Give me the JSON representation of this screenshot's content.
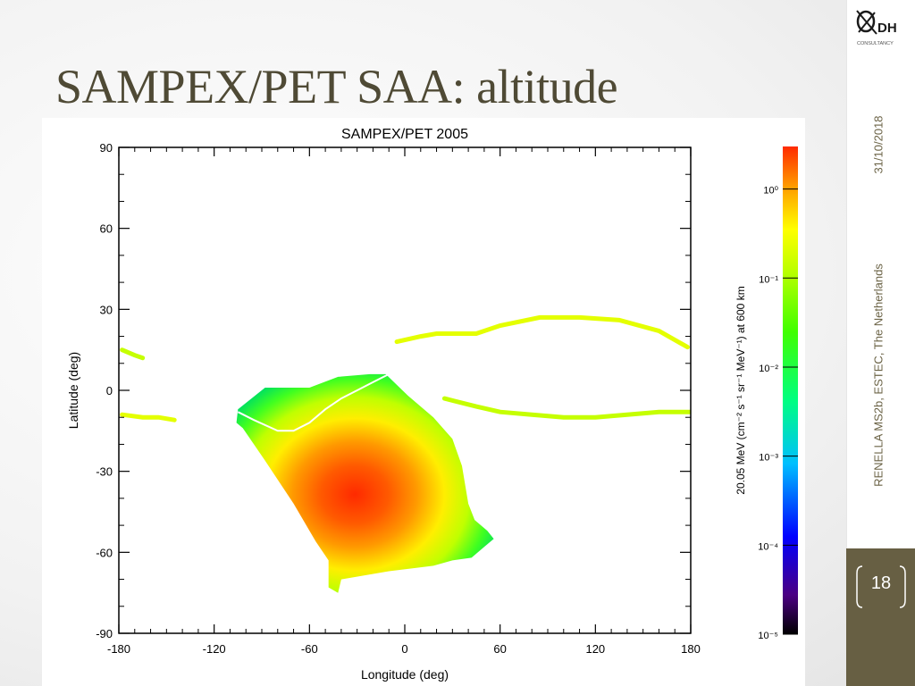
{
  "slide": {
    "title": "SAMPEX/PET SAA: altitude",
    "date": "31/10/2018",
    "footer": "RENELLA MS2b, ESTEC, The Netherlands",
    "page_number": "18",
    "logo_text": "DH",
    "logo_subtext": "CONSULTANCY",
    "accent_color": "#675f43",
    "title_color": "#4f4a35"
  },
  "chart_data": {
    "type": "heatmap",
    "title": "SAMPEX/PET 2005",
    "xlabel": "Longitude (deg)",
    "ylabel": "Latitude (deg)",
    "xlim": [
      -180,
      180
    ],
    "ylim": [
      -90,
      90
    ],
    "xticks": [
      "-180",
      "-120",
      "-60",
      "0",
      "60",
      "120",
      "180"
    ],
    "yticks": [
      "90",
      "60",
      "30",
      "0",
      "-30",
      "-60",
      "-90"
    ],
    "colorbar": {
      "label": "20.05 MeV (cm⁻² s⁻¹ sr⁻¹ MeV⁻¹) at 600 km",
      "scale": "log",
      "range": [
        1e-05,
        3
      ],
      "ticks": [
        {
          "value": 1,
          "label": "10⁰"
        },
        {
          "value": 0.1,
          "label": "10⁻¹"
        },
        {
          "value": 0.01,
          "label": "10⁻²"
        },
        {
          "value": 0.001,
          "label": "10⁻³"
        },
        {
          "value": 0.0001,
          "label": "10⁻⁴"
        },
        {
          "value": 1e-05,
          "label": "10⁻⁵"
        }
      ],
      "colormap": [
        "#000000",
        "#4b0082",
        "#0000ff",
        "#00bfff",
        "#00ff80",
        "#40ff00",
        "#c0ff00",
        "#ffff00",
        "#ff9900",
        "#ff2a00"
      ]
    },
    "regions": [
      {
        "name": "SAA",
        "peak_lon": -32,
        "peak_lat": -35,
        "peak_flux": 1.5,
        "outline_lon": [
          -105,
          -88,
          -60,
          -42,
          -22,
          -12,
          2,
          18,
          30,
          36,
          40,
          44,
          52,
          56,
          50,
          42,
          30,
          18,
          -10,
          -40,
          -42,
          -48,
          -48,
          -56,
          -70,
          -88,
          -102,
          -106
        ],
        "outline_lat": [
          -7,
          1,
          1,
          5,
          6,
          6,
          -2,
          -10,
          -18,
          -28,
          -42,
          -48,
          -52,
          -55,
          -58,
          -62,
          -63,
          -65,
          -67,
          -70,
          -75,
          -73,
          -63,
          -56,
          -42,
          -26,
          -14,
          -12
        ]
      },
      {
        "name": "north-belt",
        "path_lon": [
          -5,
          10,
          20,
          45,
          60,
          85,
          110,
          135,
          160,
          178
        ],
        "path_lat": [
          18,
          20,
          21,
          21,
          24,
          27,
          27,
          26,
          22,
          16
        ],
        "flux": 0.1
      },
      {
        "name": "south-belt",
        "path_lon": [
          25,
          45,
          60,
          80,
          100,
          120,
          140,
          160,
          180
        ],
        "path_lat": [
          -3,
          -6,
          -8,
          -9,
          -10,
          -10,
          -9,
          -8,
          -8
        ],
        "flux": 0.05
      },
      {
        "name": "west-south-belt",
        "path_lon": [
          -178,
          -165,
          -155,
          -145
        ],
        "path_lat": [
          -9,
          -10,
          -10,
          -11
        ],
        "flux": 0.1
      },
      {
        "name": "west-north-belt",
        "path_lon": [
          -178,
          -170,
          -165
        ],
        "path_lat": [
          15,
          13,
          12
        ],
        "flux": 0.05
      }
    ],
    "geomagnetic_equator": {
      "lon": [
        -105,
        -95,
        -80,
        -70,
        -60,
        -50,
        -40,
        -30,
        -20,
        -10
      ],
      "lat": [
        -8,
        -11,
        -15,
        -15,
        -12,
        -7,
        -3,
        0,
        3,
        6
      ]
    }
  }
}
